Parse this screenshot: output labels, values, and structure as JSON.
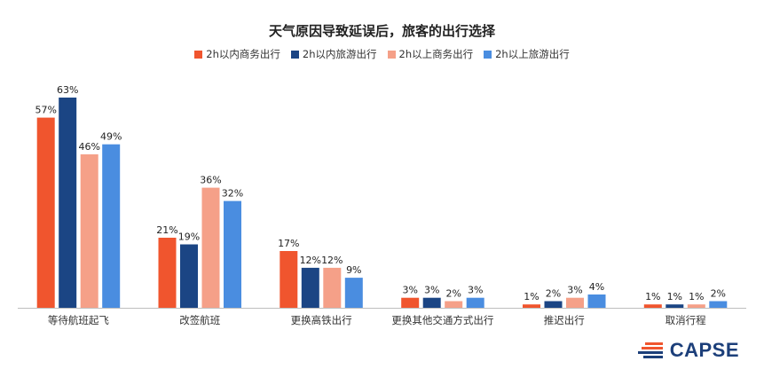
{
  "chart_data": {
    "type": "bar",
    "title": "天气原因导致延误后，旅客的出行选择",
    "categories": [
      "等待航班起飞",
      "改签航班",
      "更换高铁出行",
      "更换其他交通方式出行",
      "推迟出行",
      "取消行程"
    ],
    "series": [
      {
        "name": "2h以内商务出行",
        "color": "#f0552e",
        "values": [
          57,
          21,
          17,
          3,
          1,
          1
        ]
      },
      {
        "name": "2h以内旅游出行",
        "color": "#1b4584",
        "values": [
          63,
          19,
          12,
          3,
          2,
          1
        ]
      },
      {
        "name": "2h以上商务出行",
        "color": "#f5a088",
        "values": [
          46,
          36,
          12,
          2,
          3,
          1
        ]
      },
      {
        "name": "2h以上旅游出行",
        "color": "#4a8de0",
        "values": [
          49,
          32,
          9,
          3,
          4,
          2
        ]
      }
    ],
    "value_suffix": "%",
    "ylim": [
      0,
      63
    ],
    "legend_position": "top",
    "grid": false
  },
  "brand": {
    "name": "CAPSE"
  }
}
